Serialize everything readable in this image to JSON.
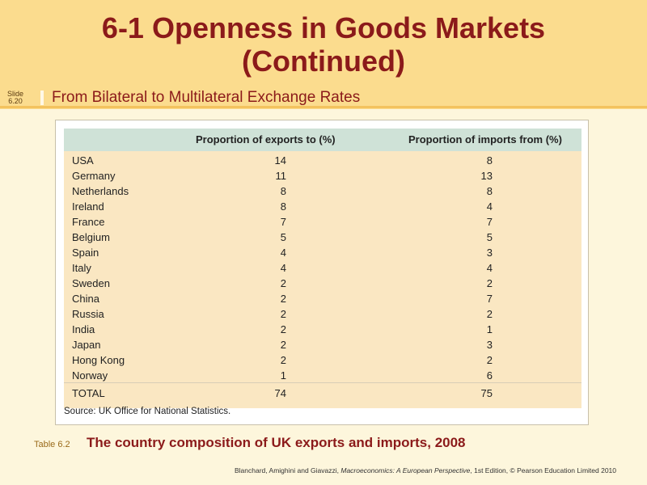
{
  "slide": {
    "title_line1": "6-1  Openness in Goods Markets",
    "title_line2": "(Continued)",
    "slide_label": "Slide",
    "slide_number": "6.20",
    "subtitle": "From Bilateral to Multilateral Exchange Rates"
  },
  "table": {
    "headers": [
      "",
      "Proportion of exports to (%)",
      "Proportion of imports from (%)"
    ],
    "rows": [
      [
        "USA",
        "14",
        "8"
      ],
      [
        "Germany",
        "11",
        "13"
      ],
      [
        "Netherlands",
        "8",
        "8"
      ],
      [
        "Ireland",
        "8",
        "4"
      ],
      [
        "France",
        "7",
        "7"
      ],
      [
        "Belgium",
        "5",
        "5"
      ],
      [
        "Spain",
        "4",
        "3"
      ],
      [
        "Italy",
        "4",
        "4"
      ],
      [
        "Sweden",
        "2",
        "2"
      ],
      [
        "China",
        "2",
        "7"
      ],
      [
        "Russia",
        "2",
        "2"
      ],
      [
        "India",
        "2",
        "1"
      ],
      [
        "Japan",
        "2",
        "3"
      ],
      [
        "Hong Kong",
        "2",
        "2"
      ],
      [
        "Norway",
        "1",
        "6"
      ]
    ],
    "total": [
      "TOTAL",
      "74",
      "75"
    ],
    "source": "Source: UK Office for National Statistics."
  },
  "caption": {
    "tag": "Table 6.2",
    "text": "The country composition of UK exports and imports, 2008"
  },
  "credit": {
    "prefix": "Blanchard, Amighini and Giavazzi, ",
    "book": "Macroeconomics: A European Perspective",
    "suffix": ", 1st Edition, © Pearson Education Limited 2010"
  }
}
